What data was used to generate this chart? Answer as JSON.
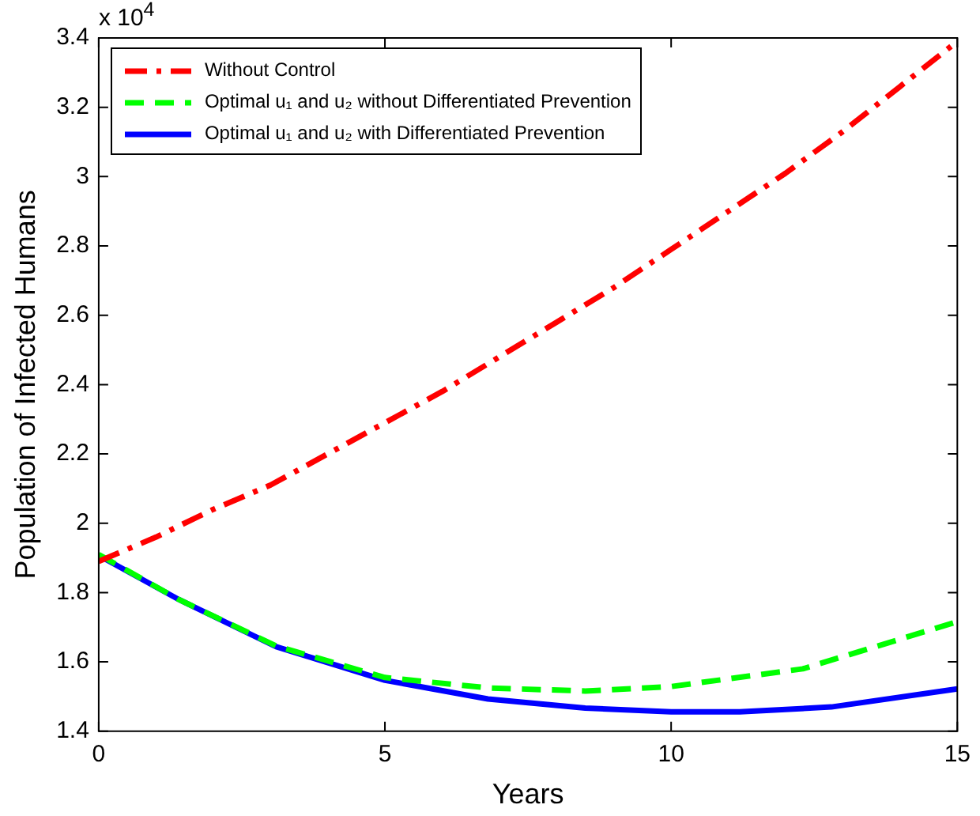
{
  "chart_data": {
    "type": "line",
    "xlabel": "Years",
    "ylabel": "Population of Infected Humans",
    "annotations": [
      "x 10$^{4}$"
    ],
    "xlim": [
      0,
      15
    ],
    "xticks": [
      0,
      5,
      10,
      15
    ],
    "ylim": [
      1.4,
      3.4
    ],
    "yticks": [
      1.4,
      1.6,
      1.8,
      2,
      2.2,
      2.4,
      2.6,
      2.8,
      3,
      3.2,
      3.4
    ],
    "grid": false,
    "legend": "top left",
    "marker": "none",
    "series": [
      {
        "name": "Without Control",
        "color": "#ff0000",
        "line_style": "dashdot",
        "x": [
          0,
          1,
          2,
          3,
          4,
          5,
          6,
          7,
          8,
          9,
          10,
          11,
          12,
          13,
          14,
          15
        ],
        "values": [
          1.89,
          1.96,
          2.04,
          2.11,
          2.2,
          2.29,
          2.38,
          2.48,
          2.58,
          2.68,
          2.79,
          2.9,
          3.01,
          3.13,
          3.26,
          3.39
        ]
      },
      {
        "name": "Optimal u₁ and u₂ without Differentiated Prevention",
        "color": "#00ff00",
        "line_style": "dashed",
        "x": [
          0,
          1.4,
          3.1,
          5,
          6.8,
          8.5,
          10,
          12.3,
          15
        ],
        "values": [
          1.91,
          1.78,
          1.646,
          1.555,
          1.525,
          1.516,
          1.529,
          1.58,
          1.716
        ]
      },
      {
        "name": "Optimal u₁ and u₂ with Differentiated Prevention",
        "color": "#0000ff",
        "line_style": "solid",
        "x": [
          0,
          1.4,
          3.1,
          5,
          6.8,
          8.5,
          10,
          11.2,
          12.8,
          15
        ],
        "values": [
          1.907,
          1.78,
          1.644,
          1.547,
          1.493,
          1.467,
          1.456,
          1.456,
          1.47,
          1.522
        ]
      }
    ]
  }
}
